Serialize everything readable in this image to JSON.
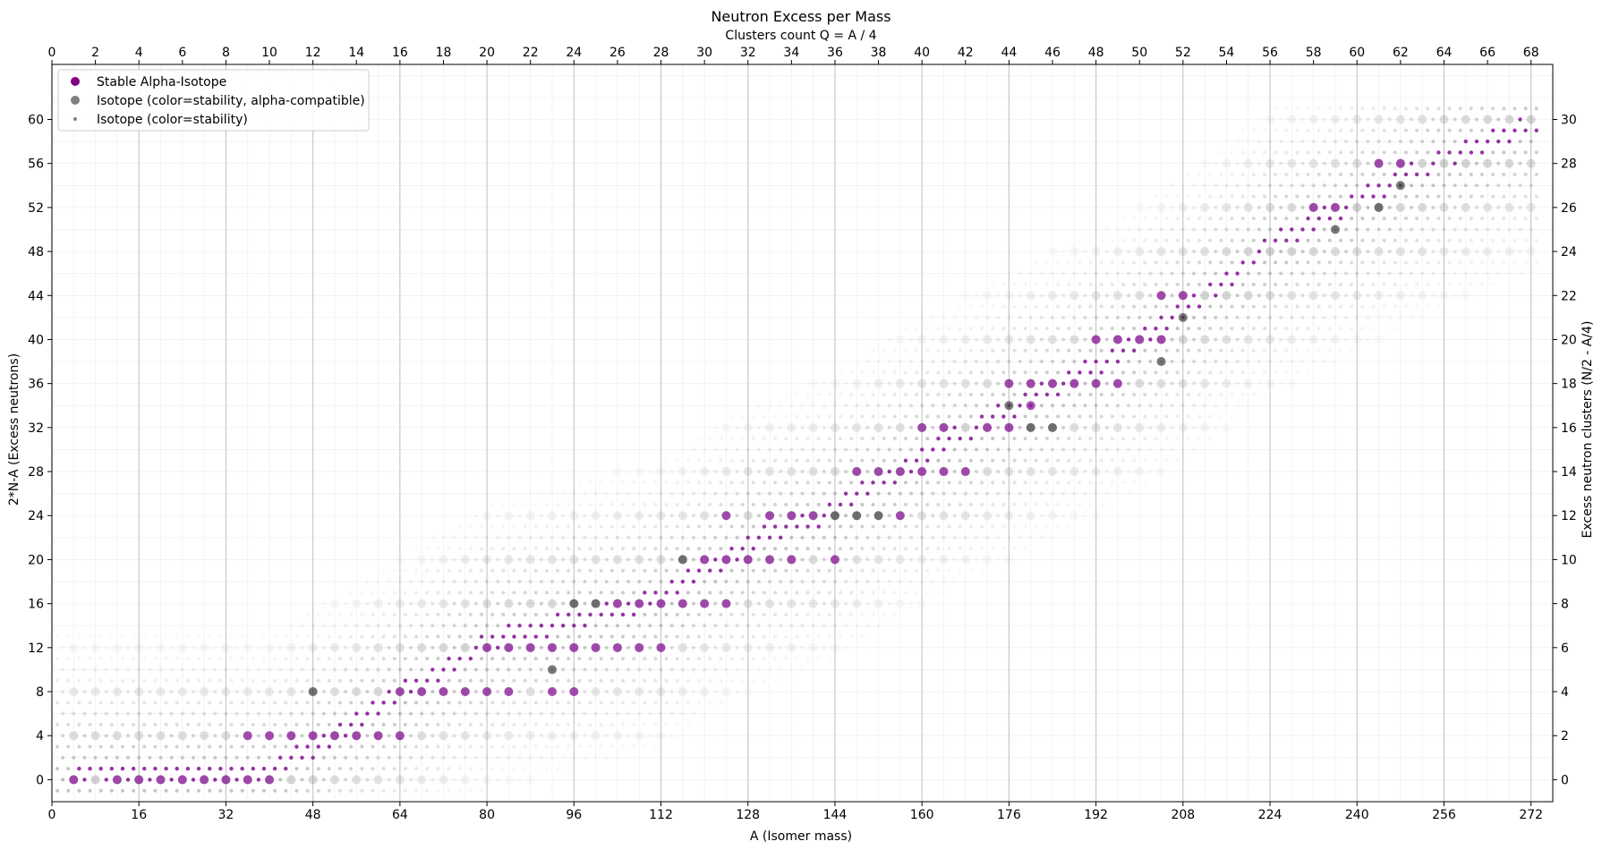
{
  "chart_data": {
    "type": "scatter",
    "title": "Neutron Excess per Mass",
    "xlabel": "A (Isomer mass)",
    "ylabel": "2*N-A (Excess neutrons)",
    "top_xlabel": "Clusters count Q = A / 4",
    "right_ylabel": "Excess neutron clusters (N/2 - A/4)",
    "xlim": [
      0,
      276
    ],
    "ylim": [
      -2,
      65
    ],
    "x_ticks": [
      0,
      16,
      32,
      48,
      64,
      80,
      96,
      112,
      128,
      144,
      160,
      176,
      192,
      208,
      224,
      240,
      256,
      272
    ],
    "y_ticks": [
      0,
      4,
      8,
      12,
      16,
      20,
      24,
      28,
      32,
      36,
      40,
      44,
      48,
      52,
      56,
      60
    ],
    "top_ticks": [
      0,
      2,
      4,
      6,
      8,
      10,
      12,
      14,
      16,
      18,
      20,
      22,
      24,
      26,
      28,
      30,
      32,
      34,
      36,
      38,
      40,
      42,
      44,
      46,
      48,
      50,
      52,
      54,
      56,
      58,
      60,
      62,
      64,
      66,
      68
    ],
    "right_ticks": [
      0,
      2,
      4,
      6,
      8,
      10,
      12,
      14,
      16,
      18,
      20,
      22,
      24,
      26,
      28,
      30
    ],
    "grid": true,
    "legend_position": "top-left",
    "legend": [
      {
        "label": "Stable Alpha-Isotope",
        "marker": "large",
        "color": "#800080"
      },
      {
        "label": "Isotope (color=stability, alpha-compatible)",
        "marker": "large",
        "color": "#808080"
      },
      {
        "label": "Isotope (color=stability)",
        "marker": "small",
        "color": "#808080"
      }
    ],
    "colors": {
      "stable": "#8b1a9b",
      "isotope": "#808080",
      "grid_major": "#c8c8c8",
      "grid_minor": "#ececec"
    },
    "band_center": [
      [
        0,
        0
      ],
      [
        40,
        0
      ],
      [
        60,
        6
      ],
      [
        80,
        12
      ],
      [
        96,
        14
      ],
      [
        112,
        16
      ],
      [
        128,
        21
      ],
      [
        144,
        24
      ],
      [
        160,
        29
      ],
      [
        176,
        33
      ],
      [
        192,
        37
      ],
      [
        208,
        42
      ],
      [
        224,
        48
      ],
      [
        240,
        52
      ],
      [
        256,
        56
      ],
      [
        272,
        59
      ]
    ],
    "band_half_width": 13,
    "stable_large": [
      [
        4,
        0
      ],
      [
        12,
        0
      ],
      [
        16,
        0
      ],
      [
        20,
        0
      ],
      [
        24,
        0
      ],
      [
        28,
        0
      ],
      [
        32,
        0
      ],
      [
        36,
        0
      ],
      [
        40,
        0
      ],
      [
        36,
        4
      ],
      [
        40,
        4
      ],
      [
        44,
        4
      ],
      [
        48,
        4
      ],
      [
        52,
        4
      ],
      [
        56,
        4
      ],
      [
        60,
        4
      ],
      [
        64,
        4
      ],
      [
        64,
        8
      ],
      [
        68,
        8
      ],
      [
        72,
        8
      ],
      [
        76,
        8
      ],
      [
        80,
        8
      ],
      [
        84,
        8
      ],
      [
        92,
        8
      ],
      [
        96,
        8
      ],
      [
        80,
        12
      ],
      [
        84,
        12
      ],
      [
        88,
        12
      ],
      [
        92,
        12
      ],
      [
        96,
        12
      ],
      [
        100,
        12
      ],
      [
        104,
        12
      ],
      [
        108,
        12
      ],
      [
        112,
        12
      ],
      [
        104,
        16
      ],
      [
        108,
        16
      ],
      [
        112,
        16
      ],
      [
        116,
        16
      ],
      [
        120,
        16
      ],
      [
        124,
        16
      ],
      [
        120,
        20
      ],
      [
        124,
        20
      ],
      [
        128,
        20
      ],
      [
        132,
        20
      ],
      [
        136,
        20
      ],
      [
        144,
        20
      ],
      [
        124,
        24
      ],
      [
        132,
        24
      ],
      [
        136,
        24
      ],
      [
        140,
        24
      ],
      [
        156,
        24
      ],
      [
        148,
        28
      ],
      [
        152,
        28
      ],
      [
        156,
        28
      ],
      [
        160,
        28
      ],
      [
        164,
        28
      ],
      [
        168,
        28
      ],
      [
        160,
        32
      ],
      [
        164,
        32
      ],
      [
        172,
        32
      ],
      [
        176,
        32
      ],
      [
        176,
        36
      ],
      [
        180,
        36
      ],
      [
        184,
        36
      ],
      [
        188,
        36
      ],
      [
        192,
        36
      ],
      [
        196,
        36
      ],
      [
        180,
        34
      ],
      [
        192,
        40
      ],
      [
        196,
        40
      ],
      [
        200,
        40
      ],
      [
        204,
        40
      ],
      [
        204,
        44
      ],
      [
        208,
        44
      ],
      [
        232,
        52
      ],
      [
        236,
        52
      ],
      [
        244,
        56
      ],
      [
        248,
        56
      ]
    ],
    "alpha_gray": [
      [
        48,
        8
      ],
      [
        96,
        16
      ],
      [
        100,
        16
      ],
      [
        116,
        20
      ],
      [
        92,
        10
      ],
      [
        144,
        24
      ],
      [
        148,
        24
      ],
      [
        152,
        24
      ],
      [
        180,
        32
      ],
      [
        184,
        32
      ],
      [
        176,
        34
      ],
      [
        204,
        38
      ],
      [
        208,
        42
      ],
      [
        236,
        50
      ],
      [
        244,
        52
      ],
      [
        248,
        54
      ]
    ]
  }
}
